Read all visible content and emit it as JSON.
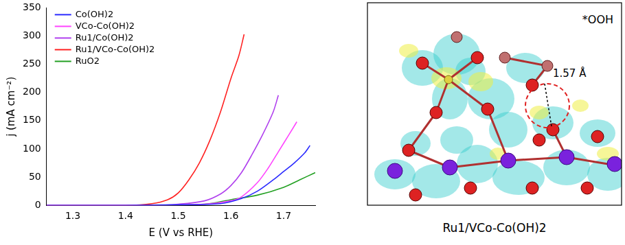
{
  "chart_data": {
    "type": "line",
    "x_label": "E (V vs RHE)",
    "y_label": "j (mA cm⁻²)",
    "xlim": [
      1.25,
      1.76
    ],
    "xticks": [
      1.3,
      1.4,
      1.5,
      1.6,
      1.7
    ],
    "ylim": [
      0,
      350
    ],
    "yticks": [
      0,
      50,
      100,
      150,
      200,
      250,
      300,
      350
    ],
    "grid": false,
    "legend": "upper left",
    "series": [
      {
        "name": "Co(OH)2",
        "color": "#2a2aff",
        "x": [
          1.25,
          1.4,
          1.5,
          1.58,
          1.62,
          1.65,
          1.68,
          1.7,
          1.72,
          1.74,
          1.75
        ],
        "values": [
          0,
          0,
          1,
          3,
          12,
          25,
          45,
          60,
          75,
          93,
          106
        ]
      },
      {
        "name": "VCo-Co(OH)2",
        "color": "#ff44ff",
        "x": [
          1.25,
          1.45,
          1.55,
          1.6,
          1.62,
          1.65,
          1.67,
          1.69,
          1.71,
          1.725
        ],
        "values": [
          0,
          0,
          2,
          8,
          15,
          40,
          65,
          95,
          125,
          148
        ]
      },
      {
        "name": "Ru1/Co(OH)2",
        "color": "#b040ee",
        "x": [
          1.25,
          1.45,
          1.5,
          1.55,
          1.58,
          1.6,
          1.62,
          1.64,
          1.66,
          1.68,
          1.69
        ],
        "values": [
          0,
          0,
          2,
          8,
          20,
          35,
          58,
          90,
          125,
          165,
          195
        ]
      },
      {
        "name": "Ru1/VCo-Co(OH)2",
        "color": "#ff2222",
        "x": [
          1.25,
          1.4,
          1.45,
          1.48,
          1.5,
          1.52,
          1.54,
          1.56,
          1.58,
          1.6,
          1.615,
          1.625
        ],
        "values": [
          0,
          0,
          3,
          10,
          22,
          45,
          75,
          115,
          165,
          225,
          265,
          303
        ]
      },
      {
        "name": "RuO2",
        "color": "#22a022",
        "x": [
          1.25,
          1.45,
          1.55,
          1.6,
          1.65,
          1.7,
          1.73,
          1.76
        ],
        "values": [
          0,
          0,
          2,
          10,
          18,
          32,
          45,
          58
        ]
      }
    ]
  },
  "structure_panel": {
    "label": "*OOH",
    "bond_length": "1.57 Å",
    "caption": "Ru1/VCo-Co(OH)2"
  }
}
